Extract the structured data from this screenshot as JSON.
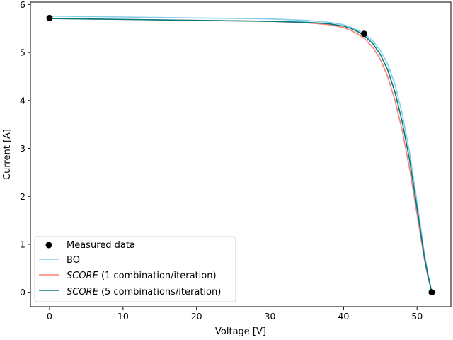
{
  "chart_data": {
    "type": "line",
    "title": "",
    "xlabel": "Voltage [V]",
    "ylabel": "Current [A]",
    "xlim": [
      -2.6,
      54.6
    ],
    "ylim": [
      -0.3,
      6.05
    ],
    "x_ticks": [
      0,
      10,
      20,
      30,
      40,
      50
    ],
    "y_ticks": [
      0,
      1,
      2,
      3,
      4,
      5,
      6
    ],
    "grid": false,
    "legend_position": "lower-left",
    "measured": {
      "name": "Measured data",
      "color": "#000000",
      "points": [
        {
          "x": 0,
          "y": 5.72
        },
        {
          "x": 42.8,
          "y": 5.39
        },
        {
          "x": 52.0,
          "y": 0.0
        }
      ]
    },
    "series": [
      {
        "name": "BO",
        "color": "#87ceeb",
        "x": [
          0,
          10,
          20,
          30,
          35,
          38,
          40,
          41,
          42,
          43,
          44,
          45,
          46,
          47,
          48,
          49,
          50,
          51,
          51.5,
          52
        ],
        "y": [
          5.76,
          5.74,
          5.72,
          5.7,
          5.67,
          5.63,
          5.58,
          5.53,
          5.46,
          5.37,
          5.24,
          5.05,
          4.76,
          4.33,
          3.71,
          2.9,
          1.88,
          0.8,
          0.37,
          0.0
        ]
      },
      {
        "name_italic": "SCORE",
        "name_suffix": " (1 combination/iteration)",
        "color": "#fa8072",
        "x": [
          0,
          10,
          20,
          30,
          35,
          38,
          40,
          41,
          42,
          43,
          44,
          45,
          46,
          47,
          48,
          49,
          50,
          51,
          51.5,
          52
        ],
        "y": [
          5.71,
          5.69,
          5.67,
          5.65,
          5.62,
          5.58,
          5.52,
          5.46,
          5.38,
          5.27,
          5.1,
          4.86,
          4.5,
          4.0,
          3.36,
          2.56,
          1.63,
          0.68,
          0.31,
          0.0
        ]
      },
      {
        "name_italic": "SCORE",
        "name_suffix": " (5 combinations/iteration)",
        "color": "#007b7f",
        "x": [
          0,
          10,
          20,
          30,
          35,
          38,
          40,
          41,
          42,
          43,
          44,
          45,
          46,
          47,
          48,
          49,
          50,
          51,
          51.5,
          52
        ],
        "y": [
          5.71,
          5.69,
          5.67,
          5.65,
          5.63,
          5.6,
          5.55,
          5.5,
          5.43,
          5.33,
          5.18,
          4.96,
          4.64,
          4.17,
          3.54,
          2.74,
          1.75,
          0.73,
          0.34,
          0.0
        ]
      }
    ]
  }
}
